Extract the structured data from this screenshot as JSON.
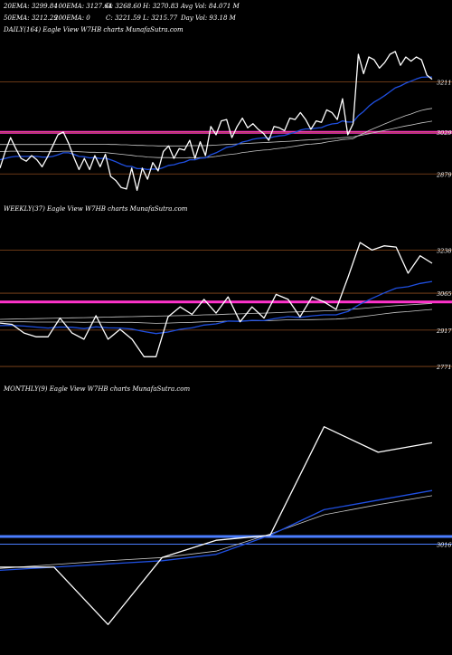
{
  "header": {
    "line1": [
      "20EMA: 3299.84",
      "100EMA: 3127.64",
      "O: 3268.60",
      "H: 3270.83",
      "Avg Vol: 84.071 M"
    ],
    "line2": [
      "50EMA: 3212.29",
      "200EMA: 0",
      "C: 3221.59",
      "L: 3215.77",
      "Day Vol: 93.18 M"
    ]
  },
  "colors": {
    "background": "#000000",
    "price": "#ffffff",
    "ema_fast": "#1f4fe0",
    "ema_slow": "#c8c8c8",
    "level": "#8a4a1e",
    "highlight": "#ff33cc",
    "monthly_level": "#4a7dff"
  },
  "chart_data": [
    {
      "type": "line",
      "title": "DAILY(164) Eagle  View  W7HB charts MunafaSutra.com",
      "levels": [
        3211,
        3029,
        2879
      ],
      "highlight_level": 3029,
      "x": [
        0,
        1,
        2,
        3,
        4,
        5,
        6,
        7,
        8,
        9,
        10,
        11,
        12,
        13,
        14,
        15,
        16,
        17,
        18,
        19,
        20,
        21,
        22,
        23,
        24,
        25,
        26,
        27,
        28,
        29,
        30,
        31,
        32,
        33,
        34,
        35,
        36,
        37,
        38,
        39,
        40,
        41,
        42,
        43,
        44,
        45,
        46,
        47,
        48,
        49,
        50,
        51,
        52,
        53,
        54,
        55,
        56,
        57,
        58,
        59,
        60,
        61,
        62,
        63,
        64,
        65,
        66,
        67,
        68,
        69,
        70,
        71,
        72,
        73,
        74,
        75,
        76,
        77,
        78,
        79,
        80,
        81,
        82
      ],
      "series": [
        {
          "values": [
            2900,
            2960,
            3010,
            2970,
            2935,
            2925,
            2945,
            2930,
            2905,
            2940,
            2980,
            3020,
            3030,
            2990,
            2940,
            2895,
            2935,
            2895,
            2945,
            2905,
            2950,
            2870,
            2855,
            2830,
            2825,
            2900,
            2820,
            2900,
            2860,
            2920,
            2890,
            2960,
            2980,
            2935,
            2970,
            2965,
            3000,
            2935,
            2995,
            2945,
            3050,
            3020,
            3070,
            3075,
            3010,
            3050,
            3080,
            3045,
            3060,
            3040,
            3025,
            3000,
            3050,
            3045,
            3035,
            3080,
            3075,
            3100,
            3075,
            3040,
            3070,
            3065,
            3110,
            3100,
            3075,
            3150,
            3020,
            3060,
            3310,
            3240,
            3300,
            3290,
            3260,
            3280,
            3310,
            3320,
            3270,
            3300,
            3285,
            3300,
            3290,
            3235,
            3220
          ]
        },
        {
          "values": [
            2930,
            2935,
            2940,
            2942,
            2942,
            2942,
            2943,
            2942,
            2940,
            2940,
            2942,
            2948,
            2955,
            2955,
            2950,
            2942,
            2941,
            2937,
            2938,
            2935,
            2936,
            2930,
            2923,
            2914,
            2907,
            2906,
            2898,
            2898,
            2895,
            2897,
            2896,
            2902,
            2910,
            2912,
            2918,
            2922,
            2930,
            2930,
            2936,
            2937,
            2948,
            2955,
            2965,
            2975,
            2978,
            2985,
            2994,
            2998,
            3004,
            3007,
            3009,
            3008,
            3013,
            3016,
            3018,
            3024,
            3029,
            3037,
            3041,
            3041,
            3044,
            3046,
            3054,
            3059,
            3061,
            3070,
            3066,
            3066,
            3089,
            3104,
            3123,
            3138,
            3149,
            3161,
            3175,
            3189,
            3196,
            3206,
            3213,
            3221,
            3227,
            3228,
            3228
          ]
        },
        {
          "values": [
            2960,
            2960,
            2961,
            2961,
            2961,
            2960,
            2960,
            2960,
            2959,
            2959,
            2959,
            2960,
            2961,
            2961,
            2960,
            2959,
            2958,
            2957,
            2957,
            2956,
            2956,
            2954,
            2952,
            2950,
            2948,
            2946,
            2943,
            2942,
            2940,
            2939,
            2938,
            2938,
            2938,
            2937,
            2937,
            2937,
            2938,
            2937,
            2938,
            2938,
            2940,
            2942,
            2945,
            2948,
            2950,
            2952,
            2956,
            2958,
            2961,
            2963,
            2965,
            2966,
            2969,
            2971,
            2973,
            2976,
            2979,
            2982,
            2985,
            2986,
            2988,
            2990,
            2994,
            2997,
            2999,
            3003,
            3004,
            3006,
            3017,
            3025,
            3035,
            3043,
            3051,
            3059,
            3067,
            3075,
            3082,
            3089,
            3095,
            3102,
            3108,
            3112,
            3115
          ]
        },
        {
          "values": [
            2985,
            2985,
            2985,
            2985,
            2985,
            2985,
            2985,
            2985,
            2985,
            2985,
            2985,
            2986,
            2986,
            2986,
            2986,
            2986,
            2986,
            2986,
            2986,
            2986,
            2986,
            2985,
            2985,
            2984,
            2984,
            2983,
            2982,
            2982,
            2981,
            2981,
            2980,
            2980,
            2980,
            2980,
            2980,
            2980,
            2981,
            2981,
            2981,
            2981,
            2982,
            2983,
            2984,
            2985,
            2986,
            2987,
            2988,
            2989,
            2990,
            2991,
            2992,
            2993,
            2994,
            2995,
            2996,
            2997,
            2998,
            3000,
            3001,
            3002,
            3003,
            3004,
            3006,
            3007,
            3008,
            3010,
            3011,
            3012,
            3016,
            3020,
            3024,
            3028,
            3032,
            3036,
            3040,
            3044,
            3048,
            3052,
            3055,
            3059,
            3063,
            3066,
            3069
          ]
        }
      ]
    },
    {
      "type": "line",
      "title": "WEEKLY(37) Eagle  View  W7HB charts MunafaSutra.com",
      "levels": [
        3238,
        3065,
        2917,
        2771
      ],
      "highlight_level": 3030,
      "x": [
        0,
        1,
        2,
        3,
        4,
        5,
        6,
        7,
        8,
        9,
        10,
        11,
        12,
        13,
        14,
        15,
        16,
        17,
        18,
        19,
        20,
        21,
        22,
        23,
        24,
        25,
        26,
        27,
        28,
        29,
        30,
        31,
        32,
        33,
        34,
        35,
        36
      ],
      "series": [
        {
          "values": [
            2945,
            2940,
            2905,
            2890,
            2890,
            2965,
            2905,
            2880,
            2975,
            2880,
            2920,
            2880,
            2810,
            2810,
            2970,
            3010,
            2980,
            3040,
            2985,
            3050,
            2950,
            3010,
            2965,
            3060,
            3040,
            2970,
            3050,
            3030,
            3000,
            3130,
            3268,
            3238,
            3255,
            3250,
            3145,
            3215,
            3185
          ]
        },
        {
          "values": [
            2935,
            2936,
            2933,
            2929,
            2925,
            2929,
            2928,
            2923,
            2930,
            2926,
            2925,
            2921,
            2911,
            2903,
            2909,
            2920,
            2926,
            2937,
            2942,
            2953,
            2952,
            2956,
            2955,
            2964,
            2971,
            2968,
            2974,
            2978,
            2978,
            2992,
            3021,
            3044,
            3066,
            3085,
            3091,
            3104,
            3112
          ]
        },
        {
          "values": [
            2950,
            2950,
            2950,
            2949,
            2949,
            2949,
            2949,
            2948,
            2949,
            2948,
            2948,
            2948,
            2946,
            2944,
            2945,
            2947,
            2948,
            2950,
            2951,
            2953,
            2953,
            2954,
            2954,
            2956,
            2958,
            2958,
            2959,
            2960,
            2961,
            2964,
            2970,
            2976,
            2982,
            2988,
            2991,
            2996,
            3000
          ]
        },
        {
          "values": [
            2960,
            2961,
            2962,
            2963,
            2964,
            2965,
            2966,
            2967,
            2968,
            2969,
            2970,
            2971,
            2972,
            2973,
            2974,
            2975,
            2976,
            2978,
            2979,
            2981,
            2982,
            2984,
            2985,
            2987,
            2989,
            2990,
            2992,
            2994,
            2996,
            2999,
            3003,
            3007,
            3011,
            3015,
            3018,
            3021,
            3024
          ]
        }
      ]
    },
    {
      "type": "line",
      "title": "MONTHLY(9) Eagle  View  W7HB charts MunafaSutra.com",
      "levels": [
        3016
      ],
      "highlight_level": 3028,
      "x": [
        0,
        1,
        2,
        3,
        4,
        5,
        6,
        7,
        8
      ],
      "series": [
        {
          "values": [
            2980,
            2980,
            2890,
            2995,
            3022,
            3030,
            3200,
            3160,
            3175
          ]
        },
        {
          "values": [
            2975,
            2980,
            2985,
            2990,
            3000,
            3030,
            3070,
            3085,
            3100
          ]
        },
        {
          "values": [
            2978,
            2984,
            2990,
            2995,
            3005,
            3032,
            3062,
            3078,
            3092
          ]
        }
      ]
    }
  ]
}
